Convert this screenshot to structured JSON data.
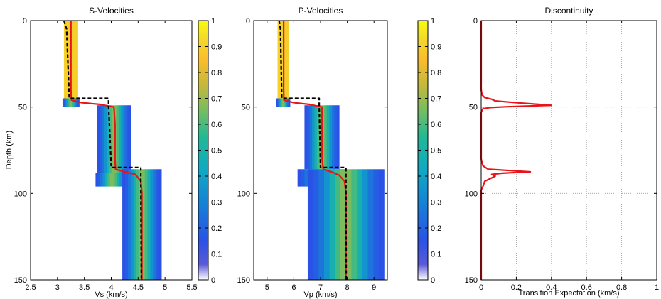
{
  "chart_data": [
    {
      "type": "heatmap",
      "title": "S-Velocities",
      "xlabel": "Vs (km/s)",
      "ylabel": "Depth (km)",
      "xlim": [
        2.5,
        5.5
      ],
      "ylim": [
        0,
        150
      ],
      "xticks": [
        "2.5",
        "3",
        "3.5",
        "4",
        "4.5",
        "5",
        "5.5"
      ],
      "yticks": [
        "0",
        "50",
        "100",
        "150"
      ],
      "colorbar": {
        "range": [
          0,
          1
        ],
        "ticks": [
          "0",
          "0.1",
          "0.2",
          "0.3",
          "0.4",
          "0.5",
          "0.6",
          "0.7",
          "0.8",
          "0.9",
          "1"
        ]
      },
      "density_layers": [
        {
          "d0": 0,
          "d1": 45,
          "center": 3.25,
          "width": 0.05
        },
        {
          "d0": 45,
          "d1": 50,
          "center": 3.25,
          "width": 0.06
        },
        {
          "d0": 49,
          "d1": 88,
          "center": 4.05,
          "width": 0.12
        },
        {
          "d0": 88,
          "d1": 96,
          "center": 4.02,
          "width": 0.12
        },
        {
          "d0": 86,
          "d1": 150,
          "center": 4.57,
          "width": 0.14
        }
      ],
      "series": [
        {
          "color": "#e8141a",
          "style": "solid",
          "points": [
            [
              3.25,
              0
            ],
            [
              3.25,
              40
            ],
            [
              3.26,
              46
            ],
            [
              3.45,
              47.5
            ],
            [
              3.8,
              48.5
            ],
            [
              4.05,
              50
            ],
            [
              4.07,
              60
            ],
            [
              4.07,
              80
            ],
            [
              4.08,
              86
            ],
            [
              4.25,
              87.5
            ],
            [
              4.45,
              89
            ],
            [
              4.55,
              93
            ],
            [
              4.57,
              100
            ],
            [
              4.57,
              150
            ]
          ]
        },
        {
          "color": "#000000",
          "style": "dashed",
          "points": [
            [
              3.12,
              0
            ],
            [
              3.17,
              5
            ],
            [
              3.22,
              45
            ],
            [
              3.95,
              45
            ],
            [
              3.95,
              49
            ],
            [
              4.0,
              85
            ],
            [
              4.55,
              85
            ],
            [
              4.55,
              92
            ],
            [
              4.56,
              150
            ]
          ]
        }
      ]
    },
    {
      "type": "heatmap",
      "title": "P-Velocities",
      "xlabel": "Vp (km/s)",
      "ylabel": "",
      "xlim": [
        4.5,
        9.5
      ],
      "ylim": [
        0,
        150
      ],
      "xticks": [
        "5",
        "6",
        "7",
        "8",
        "9"
      ],
      "yticks": [
        "0",
        "50",
        "100",
        "150"
      ],
      "colorbar": {
        "range": [
          0,
          1
        ],
        "ticks": [
          "0",
          "0.1",
          "0.2",
          "0.3",
          "0.4",
          "0.5",
          "0.6",
          "0.7",
          "0.8",
          "0.9",
          "1"
        ]
      },
      "density_layers": [
        {
          "d0": 0,
          "d1": 45,
          "center": 5.6,
          "width": 0.08
        },
        {
          "d0": 45,
          "d1": 50,
          "center": 5.6,
          "width": 0.1
        },
        {
          "d0": 49,
          "d1": 86,
          "center": 7.05,
          "width": 0.25
        },
        {
          "d0": 86,
          "d1": 96,
          "center": 7.05,
          "width": 0.35
        },
        {
          "d0": 86,
          "d1": 150,
          "center": 7.95,
          "width": 0.55
        }
      ],
      "series": [
        {
          "color": "#e8141a",
          "style": "solid",
          "points": [
            [
              5.62,
              0
            ],
            [
              5.62,
              40
            ],
            [
              5.63,
              46
            ],
            [
              6.0,
              47.5
            ],
            [
              6.6,
              48.5
            ],
            [
              7.05,
              50
            ],
            [
              7.05,
              60
            ],
            [
              7.06,
              80
            ],
            [
              7.1,
              86
            ],
            [
              7.4,
              87.5
            ],
            [
              7.7,
              89.5
            ],
            [
              7.9,
              93
            ],
            [
              7.95,
              100
            ],
            [
              7.95,
              150
            ]
          ]
        },
        {
          "color": "#000000",
          "style": "dashed",
          "points": [
            [
              5.45,
              0
            ],
            [
              5.5,
              5
            ],
            [
              5.55,
              45
            ],
            [
              6.95,
              45
            ],
            [
              6.95,
              49
            ],
            [
              7.0,
              85
            ],
            [
              7.95,
              85
            ],
            [
              7.95,
              92
            ],
            [
              7.96,
              150
            ]
          ]
        }
      ]
    },
    {
      "type": "line",
      "title": "Discontinuity",
      "xlabel": "Transition Expectation (km/s)",
      "ylabel": "",
      "xlim": [
        0,
        1
      ],
      "ylim": [
        0,
        150
      ],
      "grid": true,
      "xticks": [
        "0",
        "0.2",
        "0.4",
        "0.6",
        "0.8",
        "1"
      ],
      "yticks": [
        "0",
        "50",
        "100",
        "150"
      ],
      "series": [
        {
          "color": "#e8141a",
          "style": "solid",
          "points": [
            [
              0,
              0
            ],
            [
              0,
              40
            ],
            [
              0.005,
              43
            ],
            [
              0.02,
              44.5
            ],
            [
              0.06,
              45.5
            ],
            [
              0.08,
              46.5
            ],
            [
              0.2,
              47.5
            ],
            [
              0.4,
              49
            ],
            [
              0.15,
              49.8
            ],
            [
              0.05,
              50.3
            ],
            [
              0.01,
              51
            ],
            [
              0,
              53
            ],
            [
              0,
              80
            ],
            [
              0.01,
              84
            ],
            [
              0.04,
              86
            ],
            [
              0.2,
              87
            ],
            [
              0.28,
              87.5
            ],
            [
              0.12,
              88.3
            ],
            [
              0.06,
              89
            ],
            [
              0.08,
              90
            ],
            [
              0.05,
              91.5
            ],
            [
              0.02,
              93
            ],
            [
              0.01,
              96
            ],
            [
              0,
              98
            ],
            [
              0,
              150
            ]
          ]
        }
      ]
    }
  ]
}
